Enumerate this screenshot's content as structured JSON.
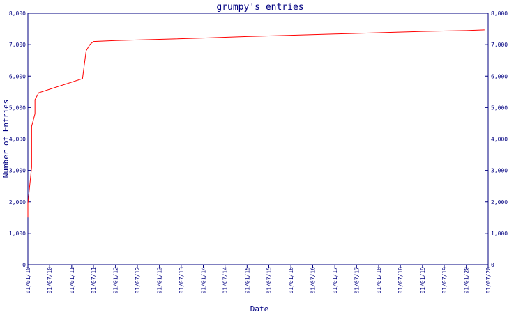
{
  "chart_data": {
    "type": "line",
    "title": "grumpy's entries",
    "xlabel": "Date",
    "ylabel": "Number of Entries",
    "ylim": [
      0,
      8000
    ],
    "y_ticks": [
      {
        "value": 0,
        "label": "0"
      },
      {
        "value": 1000,
        "label": "1,000"
      },
      {
        "value": 2000,
        "label": "2,000"
      },
      {
        "value": 3000,
        "label": "3,000"
      },
      {
        "value": 4000,
        "label": "4,000"
      },
      {
        "value": 5000,
        "label": "5,000"
      },
      {
        "value": 6000,
        "label": "6,000"
      },
      {
        "value": 7000,
        "label": "7,000"
      },
      {
        "value": 8000,
        "label": "8,000"
      }
    ],
    "x_ticks": [
      "01/01/10",
      "01/07/10",
      "01/01/11",
      "01/07/11",
      "01/01/12",
      "01/07/12",
      "01/01/13",
      "01/07/13",
      "01/01/14",
      "01/07/14",
      "01/01/15",
      "01/07/15",
      "01/01/16",
      "01/07/16",
      "01/01/17",
      "01/07/17",
      "01/01/18",
      "01/07/18",
      "01/01/19",
      "01/07/19",
      "01/01/20",
      "01/07/20"
    ],
    "line_color": "#ff0000",
    "axis_color": "#000080",
    "series": [
      {
        "points": [
          {
            "x": "01/01/10",
            "y": 1500
          },
          {
            "x": "01/01/10",
            "y": 1950
          },
          {
            "x": "01/02/10",
            "y": 3100
          },
          {
            "x": "01/02/10",
            "y": 4400
          },
          {
            "x": "01/03/10",
            "y": 4800
          },
          {
            "x": "01/03/10",
            "y": 5250
          },
          {
            "x": "01/04/10",
            "y": 5470
          },
          {
            "x": "01/04/11",
            "y": 5920
          },
          {
            "x": "01/05/11",
            "y": 6800
          },
          {
            "x": "01/06/11",
            "y": 7000
          },
          {
            "x": "01/07/11",
            "y": 7100
          },
          {
            "x": "01/01/12",
            "y": 7130
          },
          {
            "x": "01/01/13",
            "y": 7170
          },
          {
            "x": "01/01/14",
            "y": 7210
          },
          {
            "x": "01/01/15",
            "y": 7260
          },
          {
            "x": "01/01/16",
            "y": 7300
          },
          {
            "x": "01/01/17",
            "y": 7340
          },
          {
            "x": "01/01/18",
            "y": 7380
          },
          {
            "x": "01/01/19",
            "y": 7420
          },
          {
            "x": "01/01/20",
            "y": 7450
          },
          {
            "x": "01/06/20",
            "y": 7470
          }
        ]
      }
    ]
  }
}
